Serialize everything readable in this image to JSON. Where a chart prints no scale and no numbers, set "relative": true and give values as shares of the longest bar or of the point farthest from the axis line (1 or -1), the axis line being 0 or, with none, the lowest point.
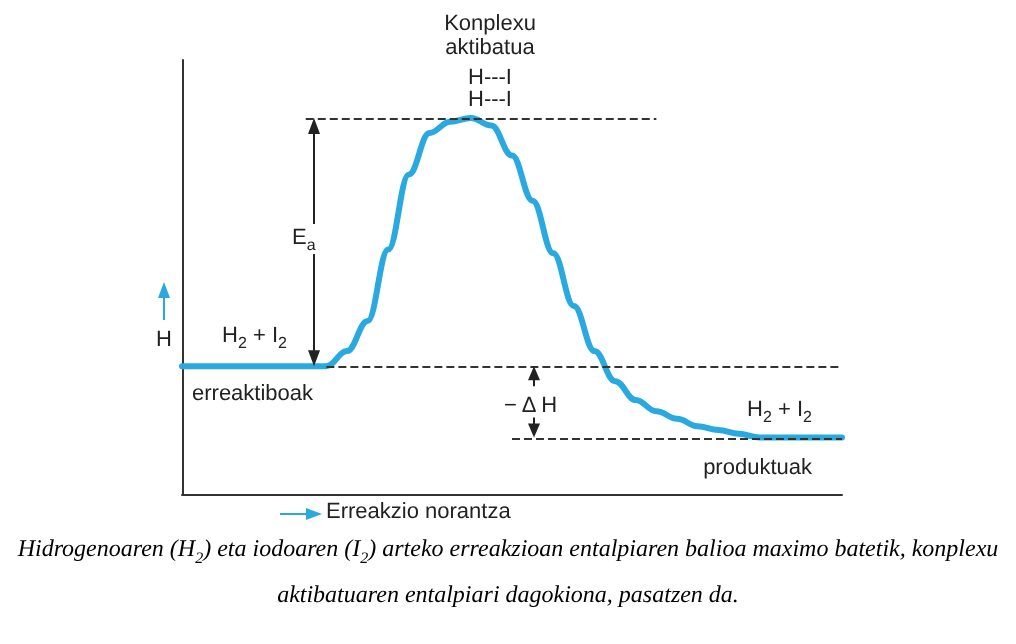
{
  "chart_data": {
    "type": "line",
    "relative": true,
    "xlabel": "Erreakzio norantza",
    "ylabel": "H",
    "categories": [
      null,
      null,
      null,
      null,
      null,
      null,
      null,
      null,
      null,
      null,
      null,
      null,
      null,
      null,
      null,
      null,
      null,
      null,
      null,
      null,
      null,
      null,
      null,
      null,
      null,
      null,
      null,
      null,
      null,
      null,
      null,
      null,
      null
    ],
    "series": [
      {
        "color": "#29a9e0",
        "values": [
          0.34,
          0.34,
          0.34,
          0.34,
          0.34,
          0.34,
          0.34,
          0.34,
          0.38,
          0.46,
          0.65,
          0.85,
          0.96,
          0.99,
          1,
          0.98,
          0.9,
          0.78,
          0.64,
          0.5,
          0.38,
          0.3,
          0.25,
          0.22,
          0.2,
          0.18,
          0.17,
          0.16,
          0.15,
          0.15,
          0.15,
          0.15,
          0.15
        ]
      }
    ],
    "ref_lines": [
      {
        "axis": "y",
        "value": 1,
        "color": "#333333",
        "line_style": "dashed"
      },
      {
        "axis": "y",
        "value": 0.34,
        "color": "#333333",
        "line_style": "dashed"
      },
      {
        "axis": "y",
        "value": 0.15,
        "color": "#333333",
        "line_style": "dashed"
      }
    ],
    "marker": "none",
    "line_style": "solid",
    "grid": false,
    "annotations": [
      "Konplexu aktibatua",
      "H---I",
      "H---I",
      "E$_{a}$",
      "H$_{2}$ + I$_{2}$",
      "erreaktiboak",
      "− Δ H",
      "H$_{2}$ + I$_{2}$",
      "produktuak",
      "Hidrogenoaren (H$_{2}$) eta iodoaren (I$_{2}$) arteko erreakzioan entalpiaren balioa maximo batetik, konplexu aktibatuaren entalpiari dagokiona, pasatzen da."
    ]
  }
}
